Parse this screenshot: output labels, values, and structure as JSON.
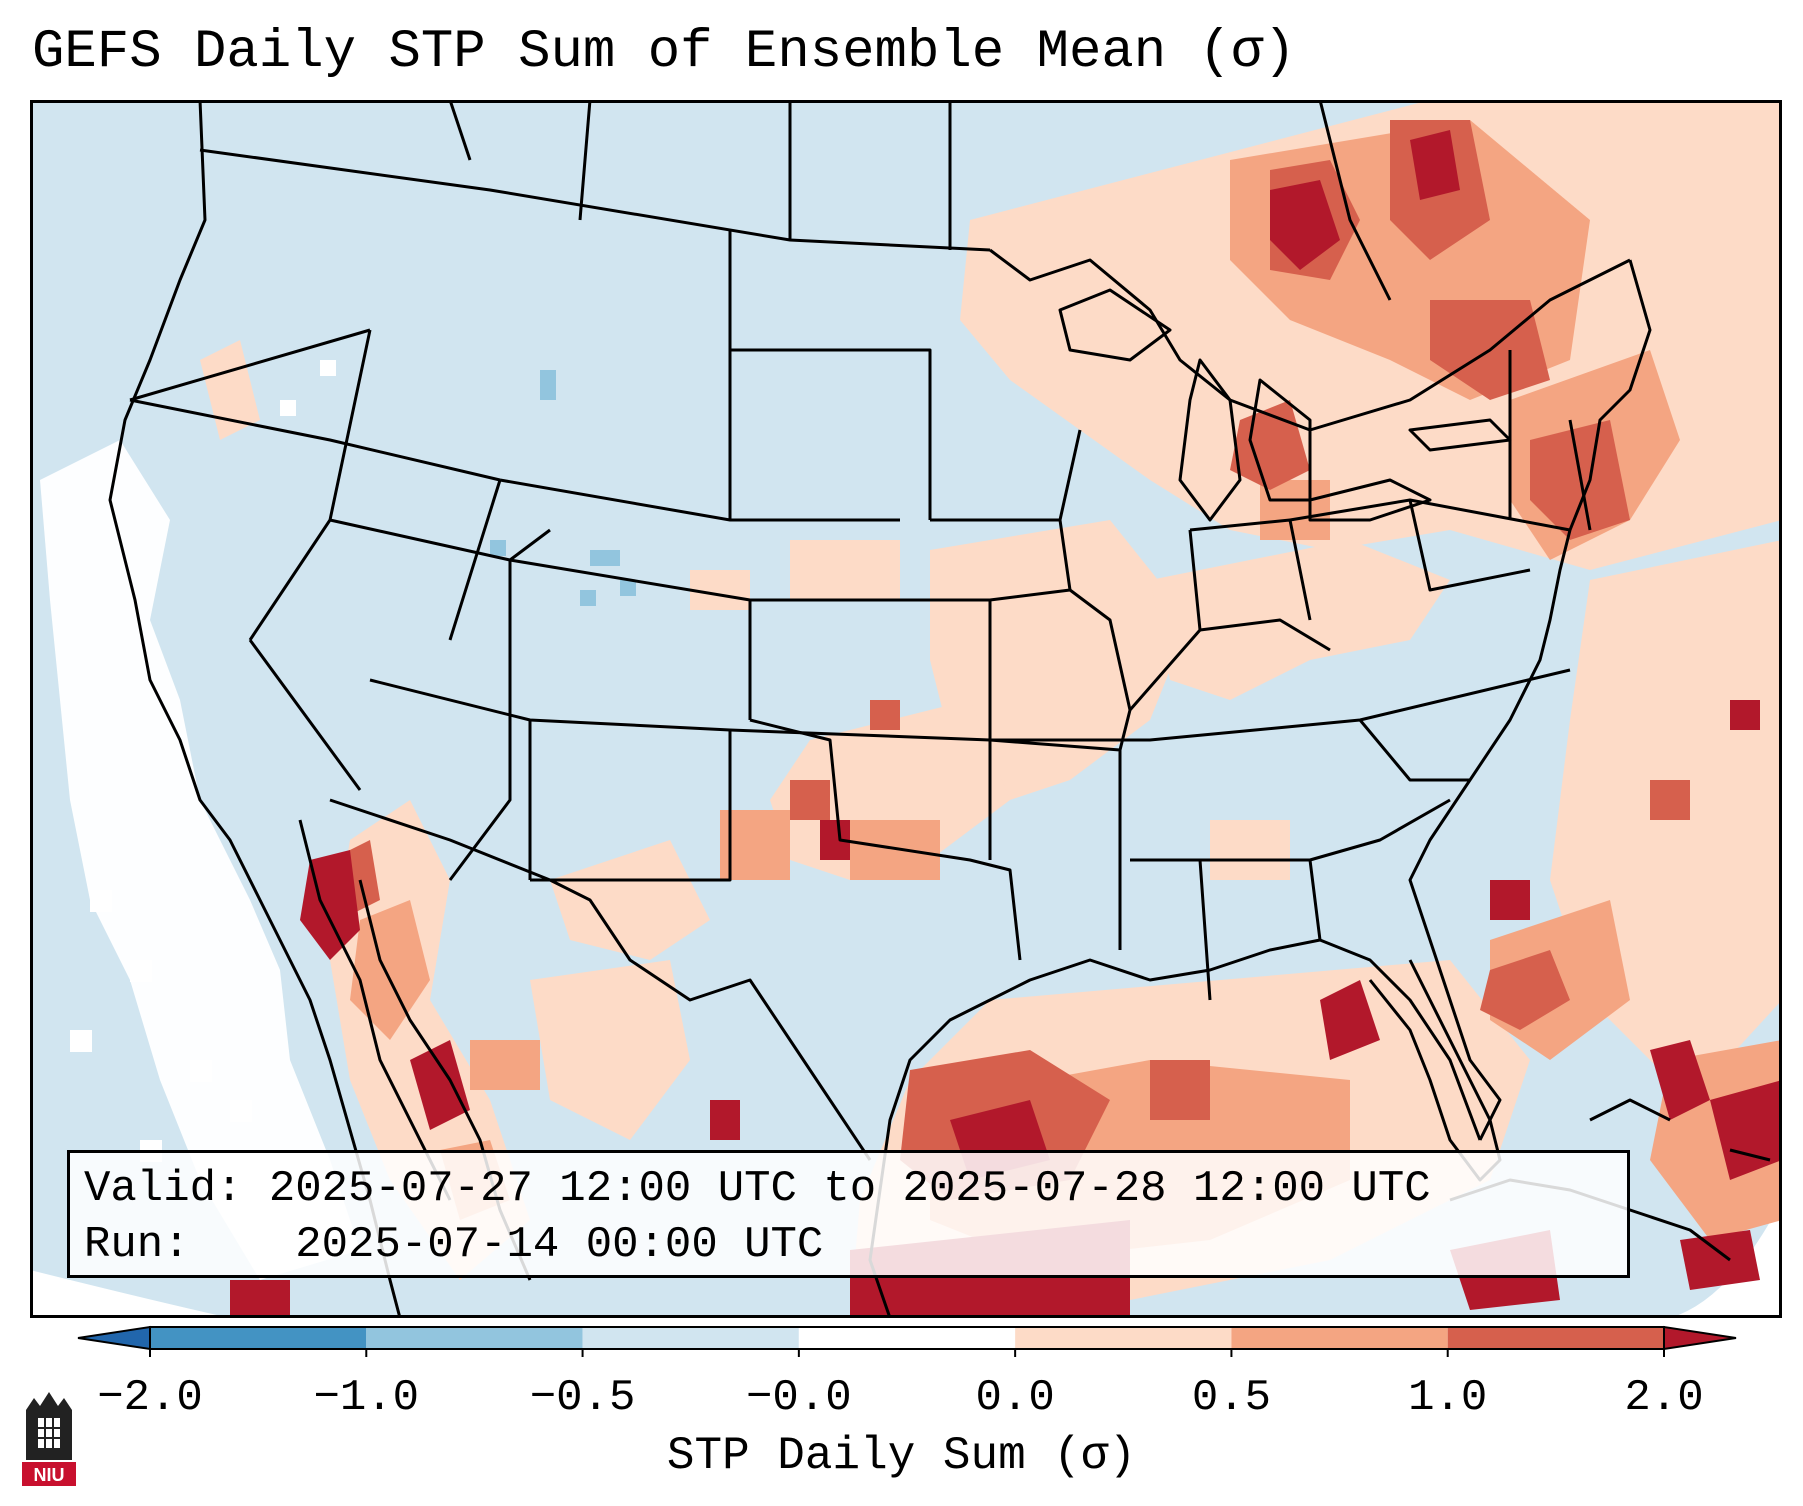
{
  "title": "GEFS Daily STP Sum of Ensemble Mean (σ)",
  "map": {
    "projection": "lambert-conformal",
    "region": "Contiguous United States, southern Canada, northern Mexico, Gulf of Mexico",
    "field": "STP daily sum standardized anomaly of GEFS ensemble mean",
    "background_color": "#d1e5f0",
    "borders_color": "#000000",
    "anomaly_colors": {
      "lt_-2": "#2166ac",
      "-2_-1": "#4393c3",
      "-1_-0.5": "#92c5de",
      "-0.5_0": "#d1e5f0",
      "near_0": "#ffffff",
      "0_0.5": "#fddbc7",
      "0.5_1": "#f4a582",
      "1_2": "#d6604d",
      "gt_2": "#b2182b"
    },
    "highlights": [
      {
        "area": "Gulf of Mexico",
        "category": "gt_2"
      },
      {
        "area": "Lower Michigan",
        "category": "1_2"
      },
      {
        "area": "New York / New England",
        "category": "1_2"
      },
      {
        "area": "Ontario / Quebec",
        "category": "gt_2"
      },
      {
        "area": "Sierra Madre Occidental",
        "category": "gt_2"
      },
      {
        "area": "Western Atlantic",
        "category": "gt_2"
      },
      {
        "area": "Pacific offshore California",
        "category": "near_0"
      }
    ]
  },
  "info": {
    "valid_label": "Valid:",
    "valid_value": "2025-07-27 12:00 UTC to 2025-07-28 12:00 UTC",
    "run_label": "Run:",
    "run_value": "2025-07-14 00:00 UTC"
  },
  "colorbar": {
    "title": "STP Daily Sum (σ)",
    "ticks": [
      "−2.0",
      "−1.0",
      "−0.5",
      "−0.0",
      "0.0",
      "0.5",
      "1.0",
      "2.0"
    ],
    "segment_colors": [
      "#4393c3",
      "#92c5de",
      "#d1e5f0",
      "#ffffff",
      "#fddbc7",
      "#f4a582",
      "#d6604d"
    ],
    "under_color": "#2166ac",
    "over_color": "#b2182b"
  },
  "logo": {
    "text": "NIU"
  }
}
